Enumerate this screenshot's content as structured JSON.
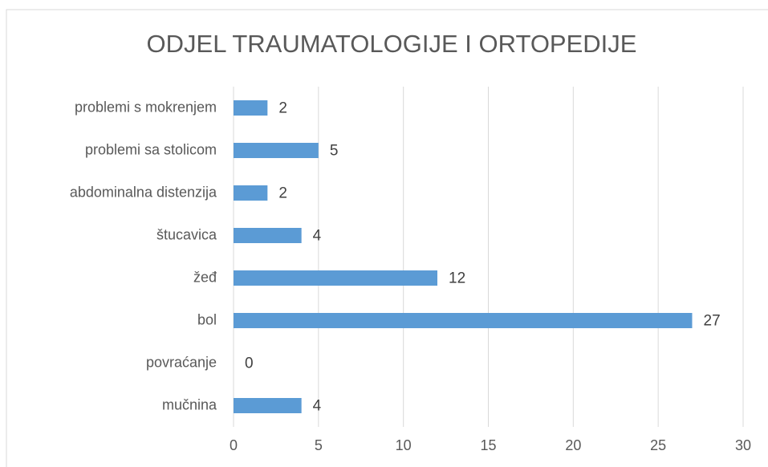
{
  "chart_data": {
    "type": "bar",
    "orientation": "horizontal",
    "title": "ODJEL TRAUMATOLOGIJE I ORTOPEDIJE",
    "categories": [
      "problemi s mokrenjem",
      "problemi sa stolicom",
      "abdominalna distenzija",
      "štucavica",
      "žeđ",
      "bol",
      "povraćanje",
      "mučnina"
    ],
    "values": [
      2,
      5,
      2,
      4,
      12,
      27,
      0,
      4
    ],
    "color": "#5b9bd5",
    "xlim": [
      0,
      30
    ],
    "xticks": [
      0,
      5,
      10,
      15,
      20,
      25,
      30
    ],
    "grid": true
  }
}
